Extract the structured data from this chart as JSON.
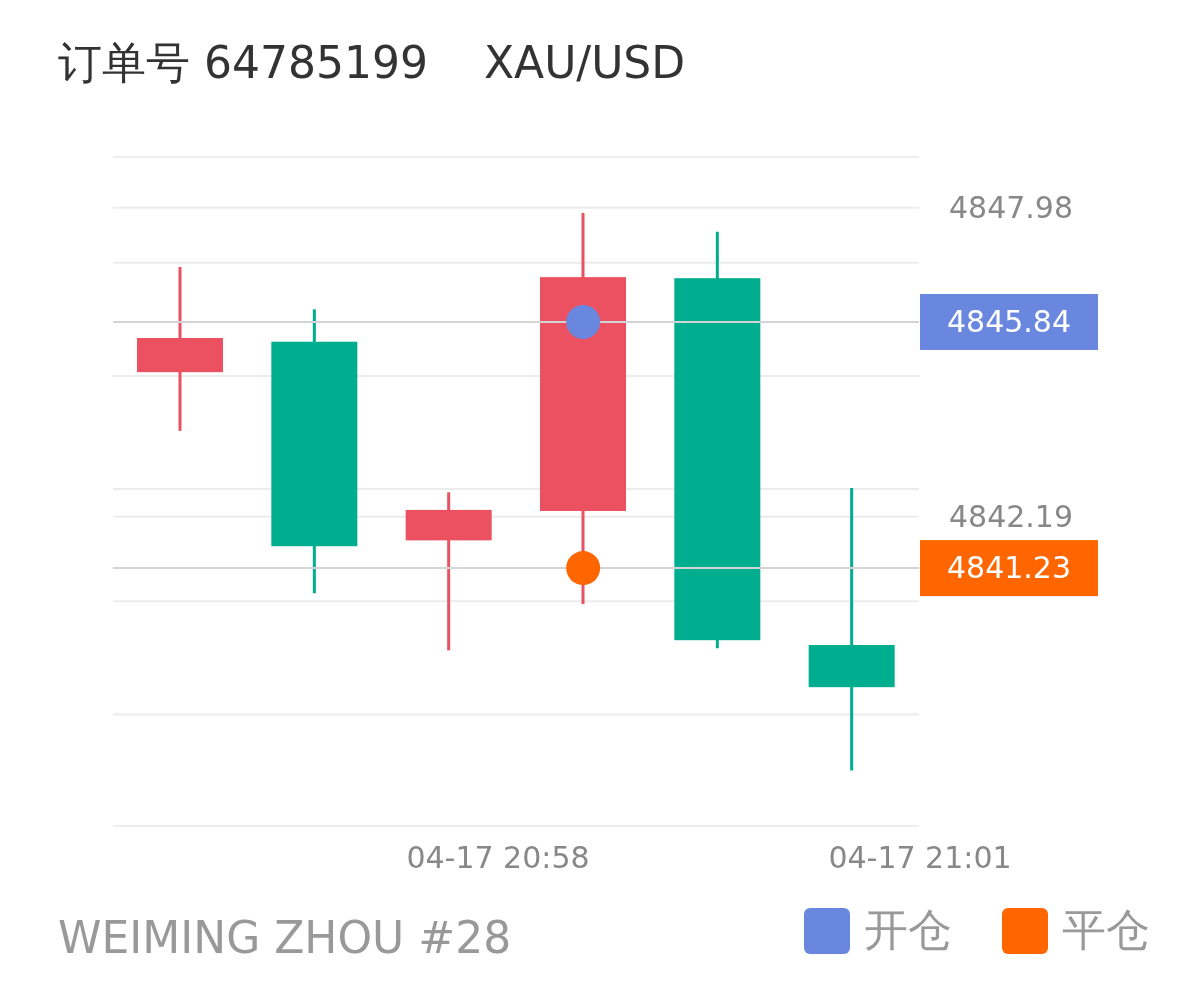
{
  "chart_data": {
    "type": "candlestick",
    "title": "订单号 64785199    XAU/USD",
    "categories": [
      null,
      null,
      null,
      null,
      null,
      null
    ],
    "ohlc": [
      [
        4844.9,
        4846.87,
        4843.8,
        4845.54
      ],
      [
        4845.47,
        4846.08,
        4840.76,
        4841.64
      ],
      [
        4841.75,
        4842.65,
        4839.69,
        4842.32
      ],
      [
        4842.3,
        4847.88,
        4840.56,
        4846.68
      ],
      [
        4846.66,
        4847.53,
        4839.73,
        4839.88
      ],
      [
        4839.79,
        4842.73,
        4837.44,
        4839.0
      ]
    ],
    "colors": [
      "#eb5160",
      "#00ae8f",
      "#eb5160",
      "#eb5160",
      "#00ae8f",
      "#00ae8f"
    ],
    "series": [
      {
        "type": "scatter",
        "name": "开仓",
        "color": "#6a87e0",
        "values": [
          null,
          null,
          null,
          4845.84,
          null,
          null
        ]
      },
      {
        "type": "scatter",
        "name": "平仓",
        "color": "#ff6600",
        "values": [
          null,
          null,
          null,
          4841.23,
          null,
          null
        ]
      }
    ],
    "ylim": [
      4836.4,
      4848.93
    ],
    "yticks": [
      {
        "value": 4838.49,
        "label": null
      },
      {
        "value": 4840.61,
        "label": null
      },
      {
        "value": 4842.19,
        "label": "4842.19"
      },
      {
        "value": 4842.71,
        "label": null
      },
      {
        "value": 4844.83,
        "label": null
      },
      {
        "value": 4846.95,
        "label": null
      },
      {
        "value": 4847.98,
        "label": "4847.98"
      }
    ],
    "ref_lines": [
      {
        "axis": "y",
        "value": 4845.84,
        "label": "4845.84"
      },
      {
        "axis": "y",
        "value": 4841.23,
        "label": "4841.23"
      }
    ],
    "grid": "y",
    "legend": "bottom right",
    "marker": "circle",
    "annotations": [
      "04-17 20:58",
      "04-17 21:01",
      "WEIMING ZHOU #28"
    ]
  }
}
